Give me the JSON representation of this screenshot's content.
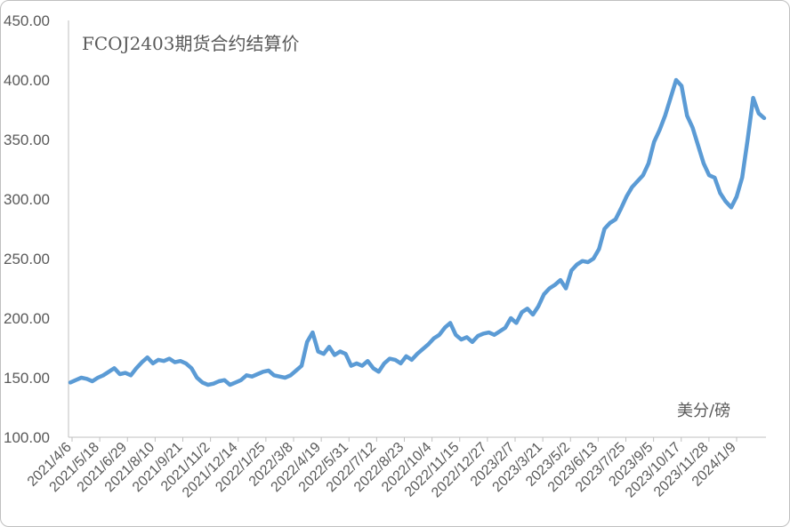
{
  "chart_data": {
    "type": "line",
    "title": "FCOJ2403期货合约结算价",
    "unit_label": "美分/磅",
    "ylim": [
      100,
      450
    ],
    "y_ticks": [
      "100.00",
      "150.00",
      "200.00",
      "250.00",
      "300.00",
      "350.00",
      "400.00",
      "450.00"
    ],
    "x_tick_labels": [
      "2021/4/6",
      "2021/5/18",
      "2021/6/29",
      "2021/8/10",
      "2021/9/21",
      "2021/11/2",
      "2021/12/14",
      "2022/1/25",
      "2022/3/8",
      "2022/4/19",
      "2022/5/31",
      "2022/7/12",
      "2022/8/23",
      "2022/10/4",
      "2022/11/15",
      "2022/12/27",
      "2023/2/7",
      "2023/3/21",
      "2023/5/2",
      "2023/6/13",
      "2023/7/25",
      "2023/9/5",
      "2023/10/17",
      "2023/11/28",
      "2024/1/9"
    ],
    "grid": false,
    "legend": "none",
    "color": "#5B9BD5",
    "series": [
      {
        "values": [
          146,
          148,
          150,
          149,
          147,
          150,
          152,
          155,
          158,
          153,
          154,
          152,
          158,
          163,
          167,
          162,
          165,
          164,
          166,
          163,
          164,
          162,
          158,
          150,
          146,
          144,
          145,
          147,
          148,
          144,
          146,
          148,
          152,
          151,
          153,
          155,
          156,
          152,
          151,
          150,
          152,
          156,
          160,
          180,
          188,
          172,
          170,
          176,
          169,
          172,
          170,
          160,
          162,
          160,
          164,
          158,
          155,
          162,
          166,
          165,
          162,
          168,
          165,
          170,
          174,
          178,
          183,
          186,
          192,
          196,
          186,
          182,
          184,
          180,
          185,
          187,
          188,
          186,
          189,
          192,
          200,
          196,
          205,
          208,
          203,
          210,
          220,
          225,
          228,
          232,
          225,
          240,
          245,
          248,
          247,
          250,
          258,
          275,
          280,
          283,
          292,
          302,
          310,
          315,
          320,
          330,
          348,
          358,
          370,
          385,
          400,
          395,
          370,
          360,
          345,
          330,
          320,
          318,
          305,
          298,
          293,
          302,
          318,
          350,
          385,
          372,
          368
        ]
      }
    ]
  }
}
